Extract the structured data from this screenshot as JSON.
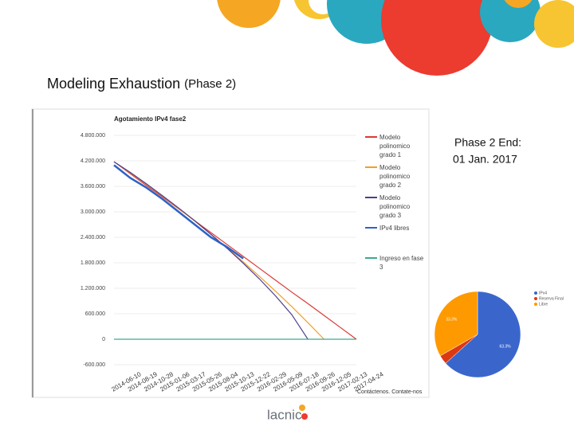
{
  "slide": {
    "title": "Modeling Exhaustion",
    "title_suffix": "(Phase 2)",
    "note_line1": "Phase 2 End:",
    "note_line2": "01 Jan. 2017",
    "footer": "Contáctenos. Contate-nos",
    "logo": "lacnic"
  },
  "chart_data": [
    {
      "type": "line",
      "title": "Agotamiento IPv4 fase2",
      "categories": [
        "2014-06-10",
        "2014-08-19",
        "2014-10-28",
        "2015-01-06",
        "2015-03-17",
        "2015-05-26",
        "2015-08-04",
        "2015-10-13",
        "2015-12-22",
        "2016-02-29",
        "2016-05-09",
        "2016-07-18",
        "2016-09-26",
        "2016-12-05",
        "2017-02-13",
        "2017-04-24"
      ],
      "ylim": [
        -600000,
        4800000
      ],
      "yticks": [
        {
          "value": 4800000,
          "label": "4.800.000"
        },
        {
          "value": 4200000,
          "label": "4.200.000"
        },
        {
          "value": 3600000,
          "label": "3.600.000"
        },
        {
          "value": 3000000,
          "label": "3.000.000"
        },
        {
          "value": 2400000,
          "label": "2.400.000"
        },
        {
          "value": 1800000,
          "label": "1.800.000"
        },
        {
          "value": 1200000,
          "label": "1.200.000"
        },
        {
          "value": 600000,
          "label": "600.000"
        },
        0,
        {
          "value": -600000,
          "label": "-600.000"
        }
      ],
      "grid": true,
      "legend": "right",
      "series": [
        {
          "name": "Modelo polinomico grado 1",
          "color": "#db3a34",
          "values": [
            4180000,
            3900000,
            3620000,
            3350000,
            3070000,
            2790000,
            2510000,
            2230000,
            1950000,
            1670000,
            1390000,
            1110000,
            840000,
            560000,
            280000,
            0
          ]
        },
        {
          "name": "Modelo polinomico grado 2",
          "color": "#f29f24",
          "values": [
            4180000,
            3920000,
            3650000,
            3370000,
            3080000,
            2780000,
            2470000,
            2150000,
            1820000,
            1480000,
            1130000,
            770000,
            390000,
            0,
            null,
            null
          ]
        },
        {
          "name": "Modelo polinomico grado 3",
          "color": "#4b3d8f",
          "values": [
            4180000,
            3930000,
            3660000,
            3380000,
            3090000,
            2790000,
            2470000,
            2140000,
            1790000,
            1420000,
            1020000,
            580000,
            0,
            null,
            null,
            null
          ]
        },
        {
          "name": "IPv4 libres",
          "color": "#2d62c9",
          "values": [
            4100000,
            3800000,
            3570000,
            3300000,
            3000000,
            2700000,
            2400000,
            2170000,
            1900000,
            null,
            null,
            null,
            null,
            null,
            null,
            null
          ]
        },
        {
          "name": "Ingreso en fase 3",
          "color": "#3aaa8f",
          "values": [
            0,
            0,
            0,
            0,
            0,
            0,
            0,
            0,
            0,
            0,
            0,
            0,
            0,
            0,
            0,
            0
          ]
        }
      ]
    },
    {
      "type": "pie",
      "categories": [
        "IPv4",
        "Reserva Final",
        "Libre"
      ],
      "values": [
        63.3,
        3.4,
        33.3
      ],
      "value_labels": [
        "63.3%",
        null,
        "33.3%"
      ],
      "colors": [
        "#3a66cc",
        "#dc3912",
        "#ff9900"
      ],
      "legend": "top-right"
    }
  ]
}
